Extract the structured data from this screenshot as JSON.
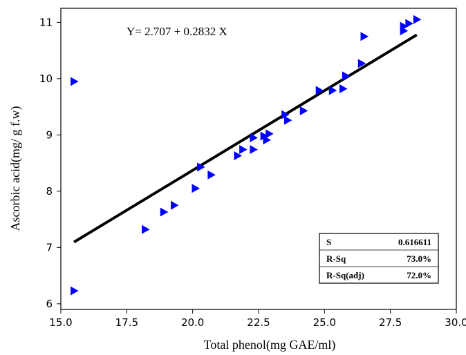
{
  "chart_data": {
    "type": "scatter",
    "xlabel": "Total phenol(mg GAE/ml)",
    "ylabel": "Ascorbic acid(mg/ g f.w)",
    "xlim": [
      15.0,
      30.0
    ],
    "ylim": [
      5.9,
      11.25
    ],
    "x_ticks": [
      "15.0",
      "17.5",
      "20.0",
      "22.5",
      "25.0",
      "27.5",
      "30.0"
    ],
    "y_ticks": [
      "6",
      "7",
      "8",
      "9",
      "10",
      "11"
    ],
    "x_tick_values": [
      15.0,
      17.5,
      20.0,
      22.5,
      25.0,
      27.5,
      30.0
    ],
    "y_tick_values": [
      6,
      7,
      8,
      9,
      10,
      11
    ],
    "marker": "right-pointing-triangle",
    "marker_color": "#0000ff",
    "line_color": "#000000",
    "grid": false,
    "equation_text": "Y=  2.707 + 0.2832 X",
    "regression": {
      "intercept": 2.707,
      "slope": 0.2832,
      "x_range": [
        15.5,
        28.5
      ]
    },
    "stats_table": [
      {
        "label": "S",
        "value": "0.616611"
      },
      {
        "label": "R-Sq",
        "value": "73.0%"
      },
      {
        "label": "R-Sq(adj)",
        "value": "72.0%"
      }
    ],
    "points": [
      {
        "x": 15.5,
        "y": 9.95
      },
      {
        "x": 15.5,
        "y": 6.23
      },
      {
        "x": 18.2,
        "y": 7.32
      },
      {
        "x": 18.9,
        "y": 7.63
      },
      {
        "x": 19.3,
        "y": 7.75
      },
      {
        "x": 20.1,
        "y": 8.05
      },
      {
        "x": 20.3,
        "y": 8.43
      },
      {
        "x": 20.7,
        "y": 8.29
      },
      {
        "x": 21.7,
        "y": 8.63
      },
      {
        "x": 21.9,
        "y": 8.74
      },
      {
        "x": 22.3,
        "y": 8.95
      },
      {
        "x": 22.3,
        "y": 8.74
      },
      {
        "x": 22.7,
        "y": 8.98
      },
      {
        "x": 22.8,
        "y": 8.91
      },
      {
        "x": 22.9,
        "y": 9.02
      },
      {
        "x": 23.5,
        "y": 9.36
      },
      {
        "x": 23.6,
        "y": 9.26
      },
      {
        "x": 24.2,
        "y": 9.43
      },
      {
        "x": 24.8,
        "y": 9.79
      },
      {
        "x": 25.3,
        "y": 9.79
      },
      {
        "x": 25.7,
        "y": 9.82
      },
      {
        "x": 25.8,
        "y": 10.05
      },
      {
        "x": 26.4,
        "y": 10.27
      },
      {
        "x": 26.5,
        "y": 10.75
      },
      {
        "x": 28.0,
        "y": 10.85
      },
      {
        "x": 28.0,
        "y": 10.93
      },
      {
        "x": 28.2,
        "y": 10.98
      },
      {
        "x": 28.5,
        "y": 11.05
      }
    ]
  }
}
